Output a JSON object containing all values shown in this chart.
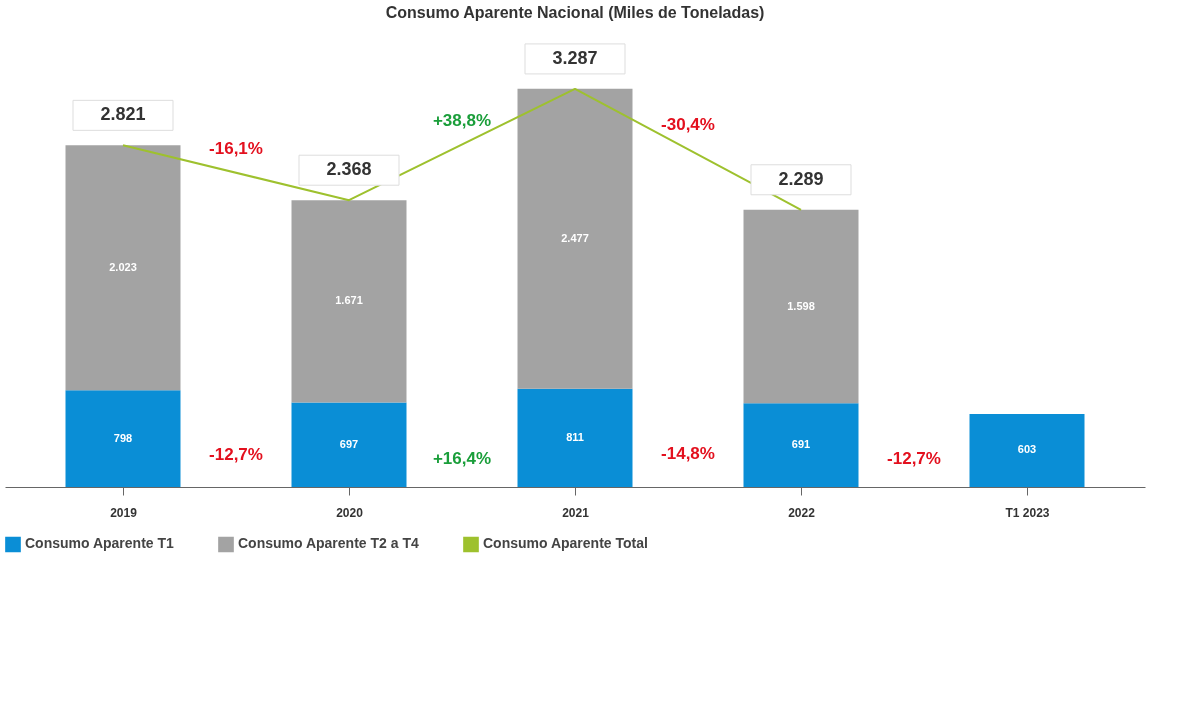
{
  "chart_data": {
    "type": "bar",
    "title": "Consumo Aparente Nacional (Miles de Toneladas)",
    "categories": [
      "2019",
      "2020",
      "2021",
      "2022",
      "T1 2023"
    ],
    "stacked": true,
    "legend": "bottom",
    "grid": false,
    "series": [
      {
        "name": "Consumo Aparente T1",
        "color": "#0a8ed6",
        "values": [
          798,
          697,
          811,
          691,
          603
        ],
        "value_labels": [
          "798",
          "697",
          "811",
          "691",
          "603"
        ]
      },
      {
        "name": "Consumo Aparente T2 a T4",
        "color": "#a3a3a3",
        "values": [
          2023,
          1671,
          2477,
          1598,
          null
        ],
        "value_labels": [
          "2.023",
          "1.671",
          "2.477",
          "1.598",
          null
        ]
      },
      {
        "name": "Consumo Aparente Total",
        "color": "#9ec12e",
        "type": "line",
        "values": [
          2821,
          2368,
          3287,
          2289,
          null
        ],
        "value_labels": [
          "2.821",
          "2.368",
          "3.287",
          "2.289",
          null
        ]
      }
    ],
    "annotations": [
      "-16,1%",
      "+38,8%",
      "-30,4%",
      "-12,7%",
      "+16,4%",
      "-14,8%",
      "-12,7%"
    ]
  }
}
